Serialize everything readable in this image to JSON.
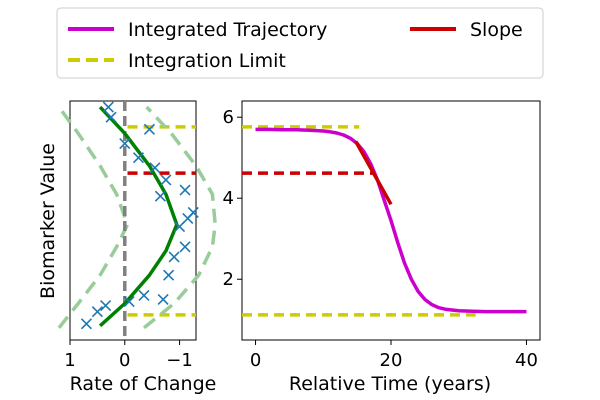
{
  "chart_data": [
    {
      "id": "rate_panel",
      "type": "scatter",
      "xlabel": "Rate of Change",
      "ylabel": "Biomarker Value",
      "x_axis_inverted": true,
      "xlim": [
        1.0,
        -1.3
      ],
      "ylim": [
        0.5,
        6.4
      ],
      "xticks": [
        1,
        0,
        -1
      ],
      "xtick_labels": [
        "1",
        "0",
        "−1"
      ],
      "zero_line": {
        "x": 0,
        "style": "dashed",
        "color": "#808080"
      },
      "scatter_points": [
        {
          "x": 0.7,
          "y": 0.9
        },
        {
          "x": 0.5,
          "y": 1.2
        },
        {
          "x": 0.35,
          "y": 1.35
        },
        {
          "x": -0.08,
          "y": 1.45
        },
        {
          "x": -0.35,
          "y": 1.6
        },
        {
          "x": -0.7,
          "y": 1.5
        },
        {
          "x": -0.8,
          "y": 2.1
        },
        {
          "x": -0.9,
          "y": 2.55
        },
        {
          "x": -1.1,
          "y": 2.8
        },
        {
          "x": -1.0,
          "y": 3.3
        },
        {
          "x": -1.25,
          "y": 3.65
        },
        {
          "x": -1.15,
          "y": 3.5
        },
        {
          "x": -0.65,
          "y": 4.05
        },
        {
          "x": -1.1,
          "y": 4.2
        },
        {
          "x": -0.75,
          "y": 4.45
        },
        {
          "x": -0.55,
          "y": 4.75
        },
        {
          "x": -0.25,
          "y": 5.0
        },
        {
          "x": 0.0,
          "y": 5.35
        },
        {
          "x": -0.45,
          "y": 5.7
        },
        {
          "x": 0.25,
          "y": 6.0
        },
        {
          "x": 0.3,
          "y": 6.25
        }
      ],
      "mean_curve": {
        "color": "#008000",
        "x": [
          0.45,
          0.0,
          -0.45,
          -0.75,
          -0.95,
          -0.75,
          -0.45,
          0.0,
          0.45
        ],
        "y": [
          0.85,
          1.4,
          2.1,
          2.7,
          3.35,
          4.1,
          4.8,
          5.6,
          6.25
        ]
      },
      "band_upper": {
        "color": "#98cc98",
        "x": [
          -0.35,
          -0.9,
          -1.35,
          -1.6,
          -1.65,
          -1.6,
          -1.3,
          -0.85,
          -0.4
        ],
        "y": [
          0.8,
          1.4,
          2.1,
          2.8,
          3.35,
          4.1,
          4.8,
          5.6,
          6.25
        ]
      },
      "band_lower": {
        "color": "#98cc98",
        "x": [
          1.2,
          0.85,
          0.45,
          0.15,
          -0.05,
          0.15,
          0.45,
          0.85,
          1.2
        ],
        "y": [
          0.8,
          1.4,
          2.1,
          2.8,
          3.35,
          4.1,
          4.8,
          5.6,
          6.25
        ]
      }
    },
    {
      "id": "time_panel",
      "type": "line",
      "xlabel": "Relative Time (years)",
      "ylabel": "",
      "xlim": [
        -2,
        42
      ],
      "ylim": [
        0.5,
        6.4
      ],
      "xticks": [
        0,
        20,
        40
      ],
      "yticks": [
        2,
        4,
        6
      ],
      "series": [
        {
          "name": "Integrated Trajectory",
          "color": "#cc00cc",
          "style": "solid",
          "x": [
            0,
            2,
            4,
            6,
            8,
            10,
            11,
            12,
            13,
            14,
            15,
            16,
            17,
            18,
            19,
            20,
            21,
            22,
            23,
            24,
            25,
            26,
            27,
            28,
            30,
            32,
            34,
            36,
            38,
            40
          ],
          "y": [
            5.7,
            5.7,
            5.69,
            5.69,
            5.68,
            5.66,
            5.64,
            5.61,
            5.56,
            5.48,
            5.35,
            5.15,
            4.85,
            4.45,
            3.95,
            3.45,
            2.9,
            2.4,
            2.0,
            1.7,
            1.5,
            1.38,
            1.3,
            1.26,
            1.22,
            1.21,
            1.2,
            1.2,
            1.2,
            1.2
          ]
        },
        {
          "name": "Slope",
          "color": "#cc0000",
          "style": "solid",
          "x": [
            14.8,
            20.0
          ],
          "y": [
            5.4,
            3.85
          ]
        },
        {
          "name": "Integration Limit",
          "color": "#cccc00",
          "style": "dashed",
          "x": [
            -2,
            15.3
          ],
          "y": [
            5.76,
            5.76
          ]
        },
        {
          "name": "Integration Limit",
          "color": "#cccc00",
          "style": "dashed",
          "x": [
            -2,
            32.5
          ],
          "y": [
            1.12,
            1.12
          ]
        },
        {
          "name": "",
          "color": "#cc0000",
          "style": "dashed",
          "x": [
            -2,
            17.5
          ],
          "y": [
            4.62,
            4.62
          ]
        }
      ]
    }
  ],
  "legend": {
    "placement": "top",
    "entries": [
      {
        "label": "Integrated Trajectory",
        "color": "#cc00cc",
        "style": "solid"
      },
      {
        "label": "Slope",
        "color": "#cc0000",
        "style": "solid"
      },
      {
        "label": "Integration Limit",
        "color": "#cccc00",
        "style": "dashed"
      }
    ]
  }
}
